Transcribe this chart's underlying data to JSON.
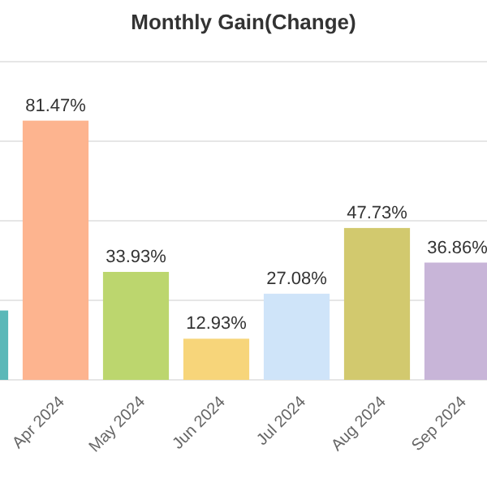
{
  "chart_data": {
    "type": "bar",
    "title": "Monthly Gain(Change)",
    "categories": [
      null,
      "Apr 2024",
      "May 2024",
      "Jun 2024",
      "Jul 2024",
      "Aug 2024",
      "Sep 2024"
    ],
    "values": [
      21.8,
      81.47,
      33.93,
      12.93,
      27.08,
      47.73,
      36.86
    ],
    "value_labels": [
      null,
      "81.47%",
      "33.93%",
      "12.93%",
      "27.08%",
      "47.73%",
      "36.86%"
    ],
    "colors": [
      "#5bb8b8",
      "#fdb48f",
      "#bcd66e",
      "#f7d57a",
      "#cfe4f9",
      "#d2c96e",
      "#c8b5d8"
    ],
    "ylim": [
      0,
      100
    ],
    "yticks": [
      {
        "value": 0,
        "label": null
      },
      {
        "value": 25,
        "label": null
      },
      {
        "value": 50,
        "label": null
      },
      {
        "value": 75,
        "label": null
      },
      {
        "value": 100,
        "label": null
      }
    ],
    "grid": "y",
    "tick_labels": "x"
  }
}
